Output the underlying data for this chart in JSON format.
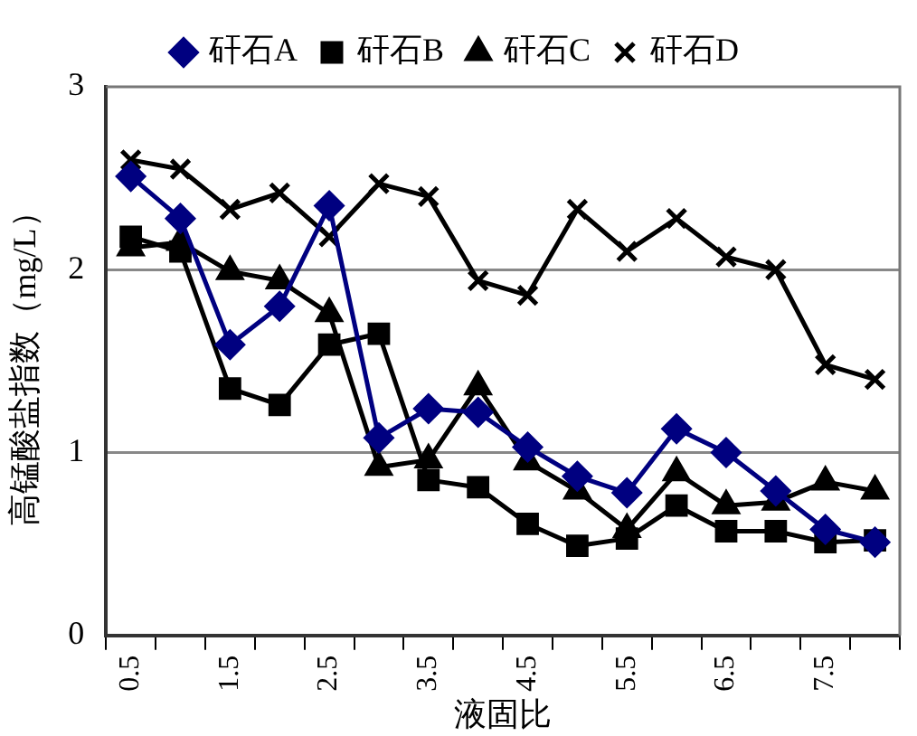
{
  "chart_data": {
    "type": "line",
    "xlabel": "液固比",
    "ylabel": "高锰酸盐指数（mg/L）",
    "categories": [
      "0.5",
      null,
      "1.5",
      null,
      "2.5",
      null,
      "3.5",
      null,
      "4.5",
      null,
      "5.5",
      null,
      "6.5",
      null,
      "7.5",
      null
    ],
    "series": [
      {
        "name": "矸石A",
        "color": "#000080",
        "marker": "diamond",
        "values": [
          2.51,
          2.28,
          1.59,
          1.8,
          2.35,
          1.08,
          1.24,
          1.22,
          1.03,
          0.87,
          0.78,
          1.13,
          1.0,
          0.79,
          0.58,
          0.51
        ]
      },
      {
        "name": "矸石B",
        "color": "#000000",
        "marker": "square",
        "values": [
          2.18,
          2.1,
          1.35,
          1.26,
          1.59,
          1.65,
          0.85,
          0.81,
          0.61,
          0.49,
          0.53,
          0.71,
          0.57,
          0.57,
          0.51,
          0.52
        ]
      },
      {
        "name": "矸石C",
        "color": "#000000",
        "marker": "triangle",
        "values": [
          2.12,
          2.15,
          1.99,
          1.94,
          1.76,
          0.92,
          0.96,
          1.36,
          0.95,
          0.79,
          0.58,
          0.89,
          0.71,
          0.73,
          0.84,
          0.79
        ]
      },
      {
        "name": "矸石D",
        "color": "#000000",
        "marker": "cross",
        "values": [
          2.6,
          2.55,
          2.33,
          2.42,
          2.18,
          2.47,
          2.4,
          1.94,
          1.86,
          2.33,
          2.1,
          2.28,
          2.07,
          2.0,
          1.48,
          1.4
        ]
      }
    ],
    "ylim": [
      0,
      3
    ],
    "yticks": [
      0,
      1,
      2,
      3
    ],
    "grid": "y",
    "legend": "top"
  }
}
